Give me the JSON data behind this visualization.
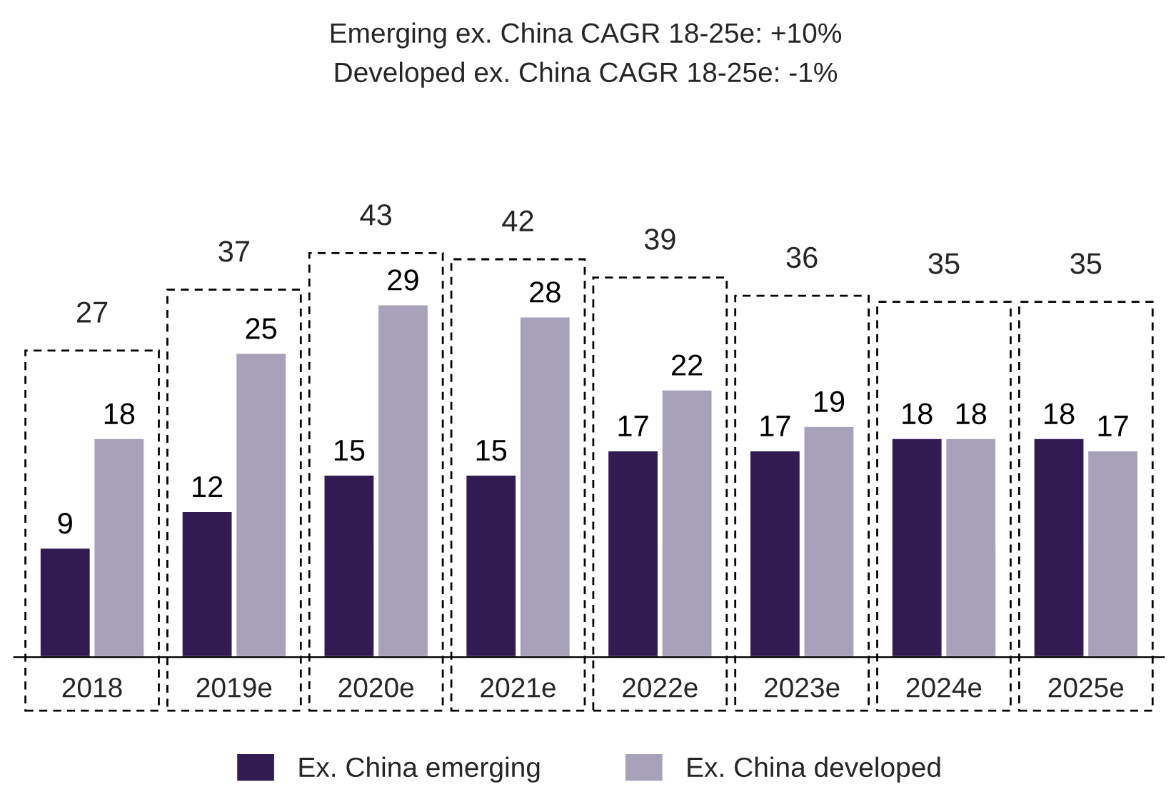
{
  "chart_data": {
    "type": "bar",
    "title": "Emerging ex. China CAGR 18-25e: +10%",
    "subtitle": "Developed ex. China CAGR 18-25e: -1%",
    "categories": [
      "2018",
      "2019e",
      "2020e",
      "2021e",
      "2022e",
      "2023e",
      "2024e",
      "2025e"
    ],
    "series": [
      {
        "name": "Ex. China emerging",
        "color": "#321b52",
        "values": [
          9,
          12,
          15,
          15,
          17,
          17,
          18,
          18
        ]
      },
      {
        "name": "Ex. China developed",
        "color": "#a8a1ba",
        "values": [
          18,
          25,
          29,
          28,
          22,
          19,
          18,
          17
        ]
      }
    ],
    "annotations": [
      "27",
      "37",
      "43",
      "42",
      "39",
      "36",
      "35",
      "35"
    ],
    "data_labels": true,
    "legend": "bottom",
    "grid": false
  }
}
